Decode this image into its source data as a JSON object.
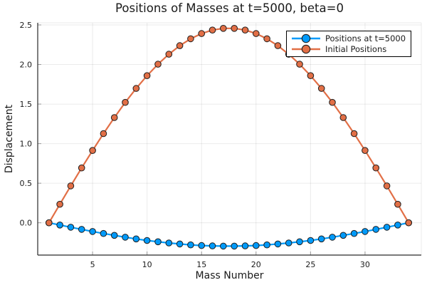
{
  "title": "Positions of Masses at t=5000, beta=0",
  "axes": {
    "xlabel": "Mass Number",
    "ylabel": "Displacement"
  },
  "styles": {
    "background": "#ffffff",
    "grid_color": "rgba(0,0,0,0.08)",
    "spine_color": "#2a2a2a",
    "tick_color": "#9a9a9a",
    "text_color": "#1a1a1a",
    "marker_stroke": "#1f1f1f",
    "legend_border": "#000000",
    "legend_bg": "#ffffff"
  },
  "chart_data": {
    "type": "line",
    "title": "Positions of Masses at t=5000, beta=0",
    "xlabel": "Mass Number",
    "ylabel": "Displacement",
    "grid": true,
    "legend_position": "top-right",
    "xlim": [
      -0.032,
      35.163
    ],
    "ylim": [
      -0.408,
      2.527
    ],
    "x_ticks": [
      5,
      10,
      15,
      20,
      25,
      30
    ],
    "x_tick_labels": [
      "5",
      "10",
      "15",
      "20",
      "25",
      "30"
    ],
    "y_ticks": [
      0.0,
      0.5,
      1.0,
      1.5,
      2.0,
      2.5
    ],
    "y_tick_labels": [
      "0.0",
      "0.5",
      "1.0",
      "1.5",
      "2.0",
      "2.5"
    ],
    "x": [
      1,
      2,
      3,
      4,
      5,
      6,
      7,
      8,
      9,
      10,
      11,
      12,
      13,
      14,
      15,
      16,
      17,
      18,
      19,
      20,
      21,
      22,
      23,
      24,
      25,
      26,
      27,
      28,
      29,
      30,
      31,
      32,
      33,
      34
    ],
    "series": [
      {
        "name": "Positions at t=5000",
        "color": "#009AFA",
        "marker": "circle",
        "values": [
          0.0,
          -0.028,
          -0.056,
          -0.083,
          -0.11,
          -0.135,
          -0.159,
          -0.182,
          -0.204,
          -0.223,
          -0.24,
          -0.255,
          -0.268,
          -0.279,
          -0.287,
          -0.292,
          -0.295,
          -0.295,
          -0.292,
          -0.287,
          -0.279,
          -0.268,
          -0.255,
          -0.24,
          -0.223,
          -0.204,
          -0.182,
          -0.159,
          -0.135,
          -0.11,
          -0.083,
          -0.056,
          -0.028,
          0.0
        ]
      },
      {
        "name": "Initial Positions",
        "color": "#E26F46",
        "marker": "circle",
        "values": [
          0.0,
          0.234,
          0.466,
          0.693,
          0.914,
          1.127,
          1.33,
          1.521,
          1.698,
          1.859,
          2.004,
          2.13,
          2.238,
          2.325,
          2.391,
          2.435,
          2.457,
          2.457,
          2.435,
          2.391,
          2.325,
          2.238,
          2.13,
          2.004,
          1.859,
          1.698,
          1.521,
          1.33,
          1.127,
          0.914,
          0.693,
          0.466,
          0.234,
          0.0
        ]
      }
    ]
  }
}
